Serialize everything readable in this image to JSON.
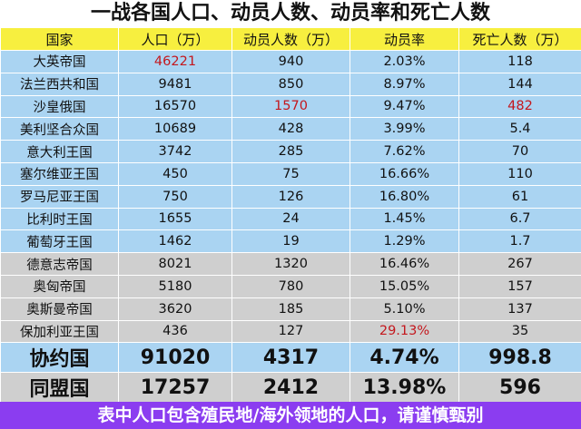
{
  "title": "一战各国人口、动员人数、动员率和死亡人数",
  "headers": [
    "国家",
    "人口（万）",
    "动员人数（万）",
    "动员率",
    "死亡人数（万）"
  ],
  "rows": [
    {
      "group": "allied",
      "cells": [
        "大英帝国",
        "46221",
        "940",
        "2.03%",
        "118"
      ],
      "red": [
        1
      ]
    },
    {
      "group": "allied",
      "cells": [
        "法兰西共和国",
        "9481",
        "850",
        "8.97%",
        "144"
      ],
      "red": []
    },
    {
      "group": "allied",
      "cells": [
        "沙皇俄国",
        "16570",
        "1570",
        "9.47%",
        "482"
      ],
      "red": [
        2,
        4
      ]
    },
    {
      "group": "allied",
      "cells": [
        "美利坚合众国",
        "10689",
        "428",
        "3.99%",
        "5.4"
      ],
      "red": []
    },
    {
      "group": "allied",
      "cells": [
        "意大利王国",
        "3742",
        "285",
        "7.62%",
        "70"
      ],
      "red": []
    },
    {
      "group": "allied",
      "cells": [
        "塞尔维亚王国",
        "450",
        "75",
        "16.66%",
        "110"
      ],
      "red": []
    },
    {
      "group": "allied",
      "cells": [
        "罗马尼亚王国",
        "750",
        "126",
        "16.80%",
        "61"
      ],
      "red": []
    },
    {
      "group": "allied",
      "cells": [
        "比利时王国",
        "1655",
        "24",
        "1.45%",
        "6.7"
      ],
      "red": []
    },
    {
      "group": "allied",
      "cells": [
        "葡萄牙王国",
        "1462",
        "19",
        "1.29%",
        "1.7"
      ],
      "red": []
    },
    {
      "group": "central",
      "cells": [
        "德意志帝国",
        "8021",
        "1320",
        "16.46%",
        "267"
      ],
      "red": []
    },
    {
      "group": "central",
      "cells": [
        "奥匈帝国",
        "5180",
        "780",
        "15.05%",
        "157"
      ],
      "red": []
    },
    {
      "group": "central",
      "cells": [
        "奥斯曼帝国",
        "3620",
        "185",
        "5.10%",
        "137"
      ],
      "red": []
    },
    {
      "group": "central",
      "cells": [
        "保加利亚王国",
        "436",
        "127",
        "29.13%",
        "35"
      ],
      "red": [
        3
      ]
    }
  ],
  "totals": [
    {
      "group": "allied",
      "cells": [
        "协约国",
        "91020",
        "4317",
        "4.74%",
        "998.8"
      ]
    },
    {
      "group": "central",
      "cells": [
        "同盟国",
        "17257",
        "2412",
        "13.98%",
        "596"
      ]
    }
  ],
  "footer": "表中人口包含殖民地/海外领地的人口，请谨慎甄别",
  "colors": {
    "header_bg": "#f7ef3f",
    "allied_bg": "#aad4f2",
    "central_bg": "#cfcfcf",
    "highlight_text": "#c4171d",
    "footer_bg": "#8b3df0"
  }
}
